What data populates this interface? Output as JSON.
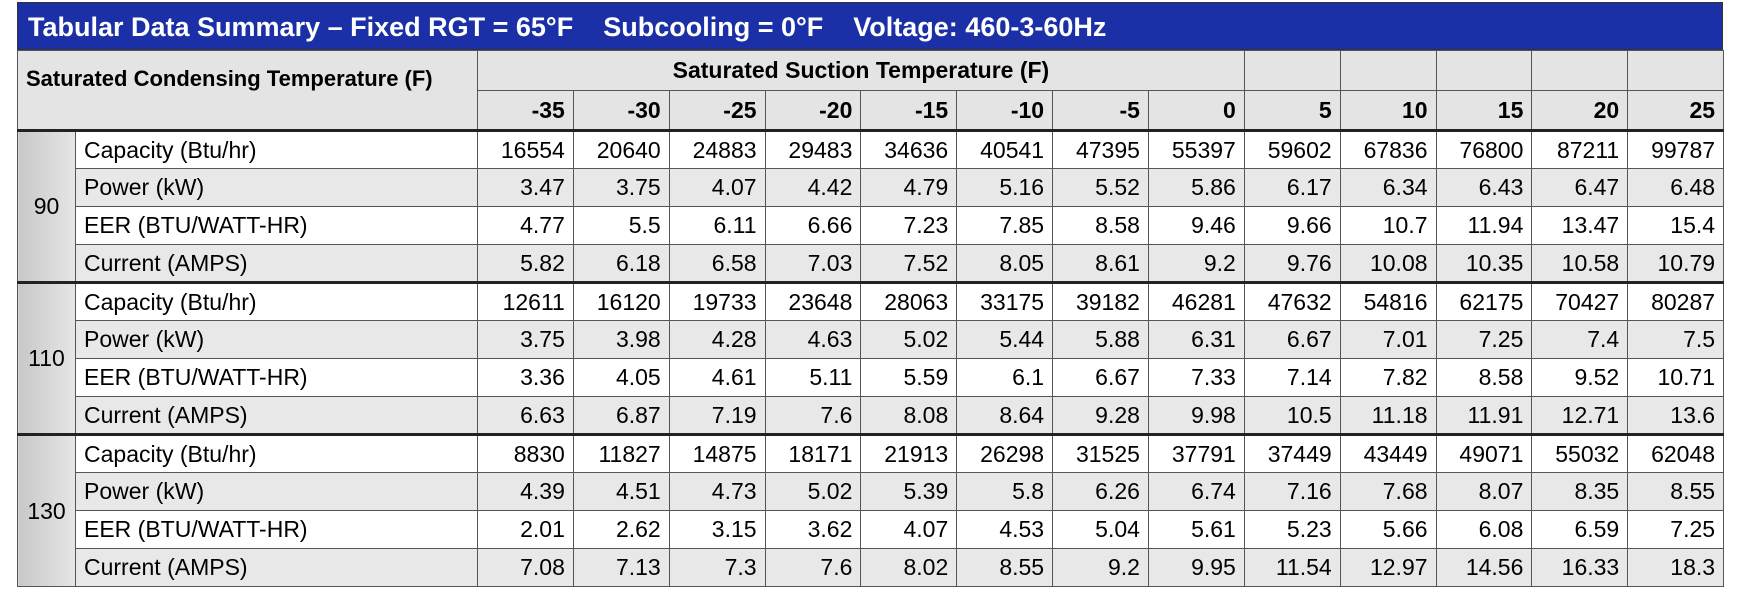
{
  "title": "Tabular Data Summary – Fixed RGT = 65°F    Subcooling = 0°F    Voltage: 460-3-60Hz",
  "header": {
    "corner_label": "Saturated Condensing Temperature (F)",
    "suction_label": "Saturated Suction Temperature (F)",
    "suction_temps": [
      -35,
      -30,
      -25,
      -20,
      -15,
      -10,
      -5,
      0,
      5,
      10,
      15,
      20,
      25
    ]
  },
  "groups": [
    {
      "condensing": "90",
      "rows": [
        {
          "label": "Capacity (Btu/hr)",
          "values": [
            16554,
            20640,
            24883,
            29483,
            34636,
            40541,
            47395,
            55397,
            59602,
            67836,
            76800,
            87211,
            99787
          ]
        },
        {
          "label": "Power (kW)",
          "values": [
            3.47,
            3.75,
            4.07,
            4.42,
            4.79,
            5.16,
            5.52,
            5.86,
            6.17,
            6.34,
            6.43,
            6.47,
            6.48
          ]
        },
        {
          "label": "EER (BTU/WATT-HR)",
          "values": [
            4.77,
            5.5,
            6.11,
            6.66,
            7.23,
            7.85,
            8.58,
            9.46,
            9.66,
            10.7,
            11.94,
            13.47,
            15.4
          ]
        },
        {
          "label": "Current (AMPS)",
          "values": [
            5.82,
            6.18,
            6.58,
            7.03,
            7.52,
            8.05,
            8.61,
            9.2,
            9.76,
            10.08,
            10.35,
            10.58,
            10.79
          ]
        }
      ]
    },
    {
      "condensing": "110",
      "rows": [
        {
          "label": "Capacity (Btu/hr)",
          "values": [
            12611,
            16120,
            19733,
            23648,
            28063,
            33175,
            39182,
            46281,
            47632,
            54816,
            62175,
            70427,
            80287
          ]
        },
        {
          "label": "Power (kW)",
          "values": [
            3.75,
            3.98,
            4.28,
            4.63,
            5.02,
            5.44,
            5.88,
            6.31,
            6.67,
            7.01,
            7.25,
            7.4,
            7.5
          ]
        },
        {
          "label": "EER (BTU/WATT-HR)",
          "values": [
            3.36,
            4.05,
            4.61,
            5.11,
            5.59,
            6.1,
            6.67,
            7.33,
            7.14,
            7.82,
            8.58,
            9.52,
            10.71
          ]
        },
        {
          "label": "Current (AMPS)",
          "values": [
            6.63,
            6.87,
            7.19,
            7.6,
            8.08,
            8.64,
            9.28,
            9.98,
            10.5,
            11.18,
            11.91,
            12.71,
            13.6
          ]
        }
      ]
    },
    {
      "condensing": "130",
      "rows": [
        {
          "label": "Capacity (Btu/hr)",
          "values": [
            8830,
            11827,
            14875,
            18171,
            21913,
            26298,
            31525,
            37791,
            37449,
            43449,
            49071,
            55032,
            62048
          ]
        },
        {
          "label": "Power (kW)",
          "values": [
            4.39,
            4.51,
            4.73,
            5.02,
            5.39,
            5.8,
            6.26,
            6.74,
            7.16,
            7.68,
            8.07,
            8.35,
            8.55
          ]
        },
        {
          "label": "EER (BTU/WATT-HR)",
          "values": [
            2.01,
            2.62,
            3.15,
            3.62,
            4.07,
            4.53,
            5.04,
            5.61,
            5.23,
            5.66,
            6.08,
            6.59,
            7.25
          ]
        },
        {
          "label": "Current (AMPS)",
          "values": [
            7.08,
            7.13,
            7.3,
            7.6,
            8.02,
            8.55,
            9.2,
            9.95,
            11.54,
            12.97,
            14.56,
            16.33,
            18.3
          ]
        }
      ]
    }
  ]
}
